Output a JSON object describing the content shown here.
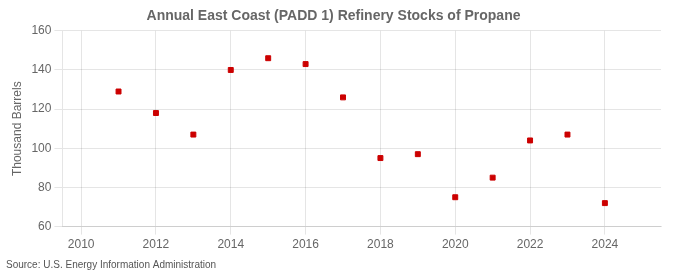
{
  "chart_data": {
    "type": "scatter",
    "title": "Annual East Coast (PADD 1) Refinery Stocks of Propane",
    "ylabel": "Thousand Barrels",
    "annotation": "Source: U.S. Energy Information Administration",
    "x": [
      2011,
      2012,
      2013,
      2014,
      2015,
      2016,
      2017,
      2018,
      2019,
      2020,
      2021,
      2022,
      2023,
      2024
    ],
    "values": [
      129,
      118,
      107,
      140,
      146,
      143,
      126,
      95,
      97,
      75,
      85,
      104,
      107,
      72
    ],
    "color": "#cc0000",
    "marker": "square",
    "xlim": [
      2009.5,
      2025.5
    ],
    "xticks": [
      2010,
      2012,
      2014,
      2016,
      2018,
      2020,
      2022,
      2024
    ],
    "ylim": [
      60,
      160
    ],
    "yticks": [
      60,
      80,
      100,
      120,
      140,
      160
    ],
    "grid": true
  }
}
